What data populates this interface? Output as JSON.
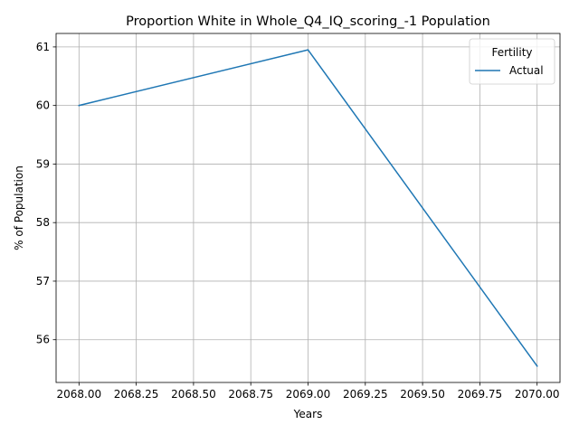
{
  "chart_data": {
    "type": "line",
    "title": "Proportion White in Whole_Q4_IQ_scoring_-1 Population",
    "xlabel": "Years",
    "ylabel": "% of Population",
    "x": [
      2068,
      2069,
      2070
    ],
    "series": [
      {
        "name": "Actual",
        "values": [
          60.0,
          60.95,
          55.55
        ],
        "color": "#1f77b4"
      }
    ],
    "xlim": [
      2067.9,
      2070.1
    ],
    "ylim": [
      55.27,
      61.23
    ],
    "xticks": [
      2068.0,
      2068.25,
      2068.5,
      2068.75,
      2069.0,
      2069.25,
      2069.5,
      2069.75,
      2070.0
    ],
    "xtick_labels": [
      "2068.00",
      "2068.25",
      "2068.50",
      "2068.75",
      "2069.00",
      "2069.25",
      "2069.50",
      "2069.75",
      "2070.00"
    ],
    "yticks": [
      56,
      57,
      58,
      59,
      60,
      61
    ],
    "ytick_labels": [
      "56",
      "57",
      "58",
      "59",
      "60",
      "61"
    ],
    "grid": true,
    "legend": {
      "title": "Fertility",
      "placement": "top-right"
    }
  }
}
